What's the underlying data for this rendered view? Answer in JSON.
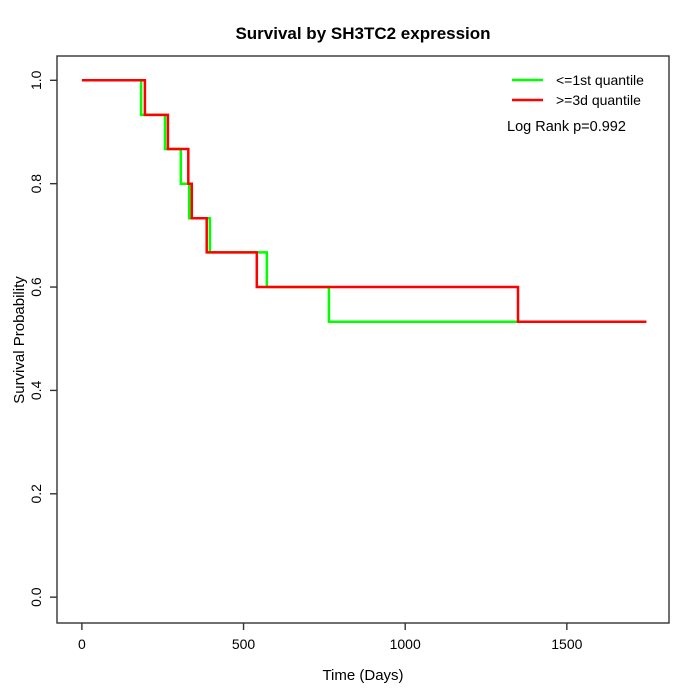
{
  "chart_data": {
    "type": "line",
    "variant": "kaplan-meier-step",
    "title": "Survival by SH3TC2 expression",
    "xlabel": "Time (Days)",
    "ylabel": "Survival Probability",
    "x_ticks": [
      0,
      500,
      1000,
      1500
    ],
    "x_tick_labels": [
      "0",
      "500",
      "1000",
      "1500"
    ],
    "y_ticks": [
      0.0,
      0.2,
      0.4,
      0.6,
      0.8,
      1.0
    ],
    "y_tick_labels": [
      "0.0",
      "0.2",
      "0.4",
      "0.6",
      "0.8",
      "1.0"
    ],
    "x_range_usr": [
      -77,
      1816
    ],
    "y_range_usr": [
      -0.05,
      1.047
    ],
    "grid": false,
    "survival_levels": [
      1.0,
      0.933,
      0.867,
      0.8,
      0.733,
      0.667,
      0.6,
      0.533
    ],
    "series": [
      {
        "name": "<=1st quantile",
        "color": "#00ff00",
        "drop_times": [
          183,
          257,
          306,
          332,
          396,
          572,
          764
        ],
        "end_time": 1349
      },
      {
        "name": ">=3d quantile",
        "color": "#ff0000",
        "drop_times": [
          195,
          266,
          329,
          340,
          386,
          541,
          1349
        ],
        "end_time": 1746
      }
    ],
    "legend": {
      "position": "top-right",
      "annotation": "Log Rank p=0.992"
    }
  }
}
